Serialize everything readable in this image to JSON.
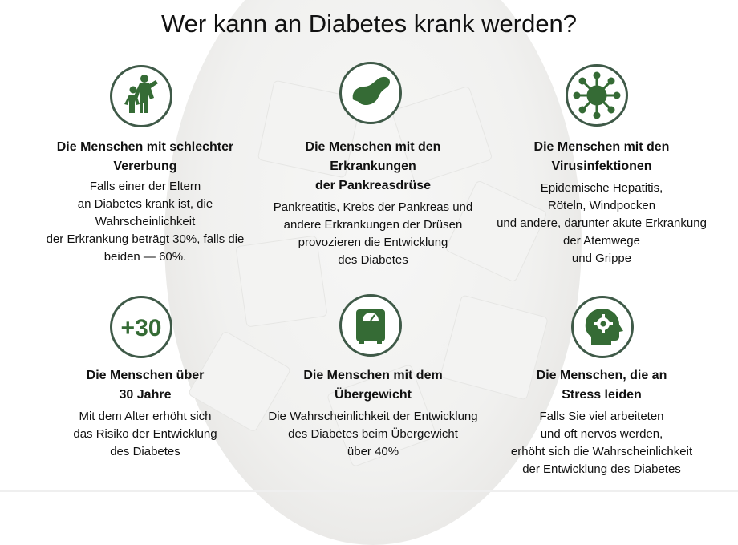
{
  "title": "Wer kann an Diabetes krank werden?",
  "colors": {
    "icon_green": "#3f5a48",
    "icon_fill": "#356b35"
  },
  "items": [
    {
      "icon": "family-icon",
      "heading": "Die Menschen mit schlechter\nVererbung",
      "text": "Falls einer der Eltern\nan Diabetes krank ist, die\nWahrscheinlichkeit\nder Erkrankung beträgt 30%, falls die\nbeiden — 60%."
    },
    {
      "icon": "pancreas-icon",
      "heading": "Die Menschen mit den\nErkrankungen\nder Pankreasdrüse",
      "text": "Pankreatitis, Krebs der Pankreas und\nandere Erkrankungen der Drüsen\nprovozieren die Entwicklung\ndes Diabetes"
    },
    {
      "icon": "virus-icon",
      "heading": "Die Menschen mit den\nVirusinfektionen",
      "text": "Epidemische Hepatitis,\nRöteln, Windpocken\nund andere, darunter akute Erkrankung\nder Atemwege\nund Grippe"
    },
    {
      "icon": "age-30-icon",
      "icon_text": "+30",
      "heading": "Die Menschen über\n30 Jahre",
      "text": "Mit dem Alter erhöht sich\ndas Risiko der Entwicklung\ndes Diabetes"
    },
    {
      "icon": "scale-icon",
      "heading": "Die Menschen mit dem\nÜbergewicht",
      "text": "Die Wahrscheinlichkeit der Entwicklung\ndes Diabetes beim Übergewicht\nüber 40%"
    },
    {
      "icon": "head-gear-icon",
      "heading": "Die Menschen, die an\nStress leiden",
      "text": "Falls Sie viel arbeiteten\nund oft nervös werden,\nerhöht sich die Wahrscheinlichkeit\nder Entwicklung des Diabetes"
    }
  ]
}
